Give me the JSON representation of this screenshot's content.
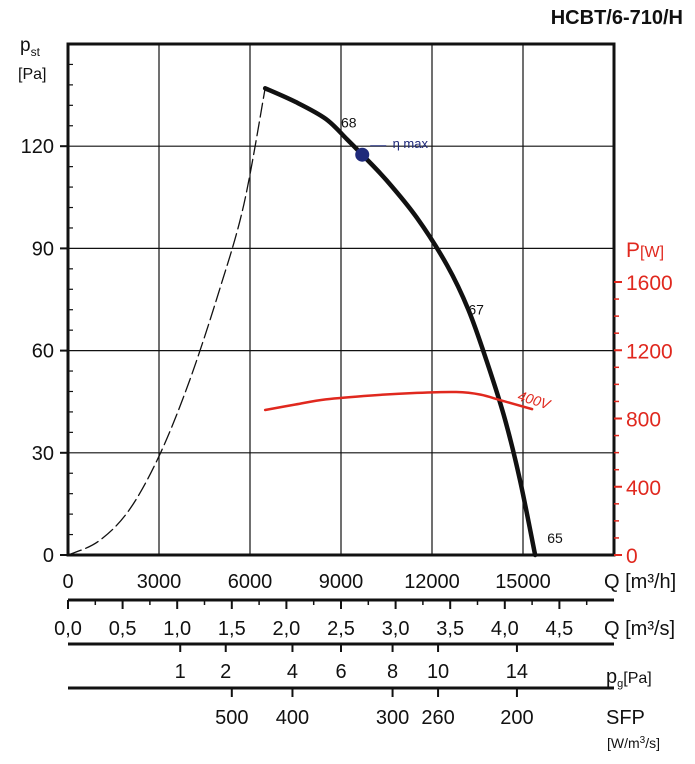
{
  "chart_data": {
    "type": "line",
    "title": "HCBT/6-710/H",
    "ylabel": {
      "main": "p",
      "sub": "st",
      "unit": "[Pa]"
    },
    "ylim": [
      0,
      150
    ],
    "yticks": [
      0,
      30,
      60,
      90,
      120
    ],
    "y2label": {
      "main": "P",
      "unit": "[W]"
    },
    "y2lim": [
      0,
      1600
    ],
    "y2ticks": [
      0,
      400,
      800,
      1200,
      1600
    ],
    "xlabel": "Q [m³/h]",
    "xlim": [
      0,
      18000
    ],
    "xticks": [
      0,
      3000,
      6000,
      9000,
      12000,
      15000
    ],
    "grid": true,
    "series": [
      {
        "name": "pressure",
        "style": "solid",
        "color": "#111111",
        "points": [
          [
            6500,
            137
          ],
          [
            7500,
            133
          ],
          [
            8500,
            128
          ],
          [
            9200,
            122
          ],
          [
            9700,
            117.5
          ],
          [
            10500,
            110
          ],
          [
            11500,
            99
          ],
          [
            12500,
            85
          ],
          [
            13200,
            72
          ],
          [
            13800,
            57
          ],
          [
            14400,
            40
          ],
          [
            14900,
            22
          ],
          [
            15400,
            0
          ]
        ]
      },
      {
        "name": "system-curve",
        "style": "dashed",
        "color": "#111111",
        "points": [
          [
            0,
            0
          ],
          [
            1000,
            4
          ],
          [
            2000,
            13
          ],
          [
            3000,
            29
          ],
          [
            4000,
            51
          ],
          [
            5000,
            78
          ],
          [
            5800,
            103
          ],
          [
            6500,
            137
          ]
        ]
      },
      {
        "name": "power-400V",
        "style": "solid",
        "color": "#e0281e",
        "axis": "right",
        "points": [
          [
            6500,
            850
          ],
          [
            7500,
            882
          ],
          [
            8500,
            912
          ],
          [
            10000,
            935
          ],
          [
            11500,
            950
          ],
          [
            12800,
            955
          ],
          [
            13600,
            940
          ],
          [
            14300,
            905
          ],
          [
            15300,
            855
          ]
        ]
      }
    ],
    "annotations": [
      {
        "text": "68",
        "x": 9000,
        "y": 127
      },
      {
        "text": "η max",
        "x": 10700,
        "y": 121
      },
      {
        "text": "67",
        "x": 13200,
        "y": 72
      },
      {
        "text": "65",
        "x": 15800,
        "y": 5
      },
      {
        "text": "400V",
        "x": 14800,
        "y": 47
      }
    ],
    "eta_max_point": {
      "x": 9700,
      "y": 117.5
    },
    "secondary_scales": [
      {
        "name": "Q [m³/s]",
        "labels": [
          "0,0",
          "0,5",
          "1,0",
          "1,5",
          "2,0",
          "2,5",
          "3,0",
          "3,5",
          "4,0",
          "4,5"
        ],
        "positions": [
          0,
          1800,
          3600,
          5400,
          7200,
          9000,
          10800,
          12600,
          14400,
          16200
        ]
      },
      {
        "name": "pg[Pa]",
        "labels": [
          "1",
          "2",
          "4",
          "6",
          "8",
          "10",
          "14"
        ],
        "positions": [
          3700,
          5200,
          7400,
          9000,
          10700,
          12200,
          14800
        ]
      },
      {
        "name": "SFP [W/m³/s]",
        "labels": [
          "500",
          "400",
          "300",
          "260",
          "200"
        ],
        "positions": [
          5400,
          7400,
          10700,
          12200,
          14800
        ]
      }
    ]
  }
}
